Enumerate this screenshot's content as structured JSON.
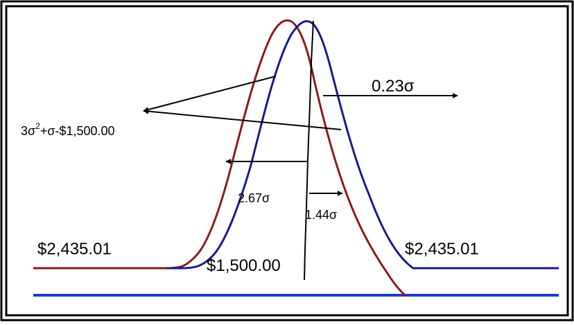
{
  "labels": {
    "left_price": "$2,435.01",
    "center_price": "$1,500.00",
    "right_price": "$2,435.01",
    "sigma_right": "0.23σ",
    "sigma_left": "2.67σ",
    "sigma_small": "1.44σ",
    "formula_prefix": "3σ",
    "formula_exponent": "2",
    "formula_suffix": "+σ-$1,500.00"
  },
  "colors": {
    "red_curve": "#8b1a1a",
    "blue_curve": "#1a1a8c",
    "baseline": "#1a3ccc",
    "frame": "#000000",
    "background": "#ffffff"
  }
}
